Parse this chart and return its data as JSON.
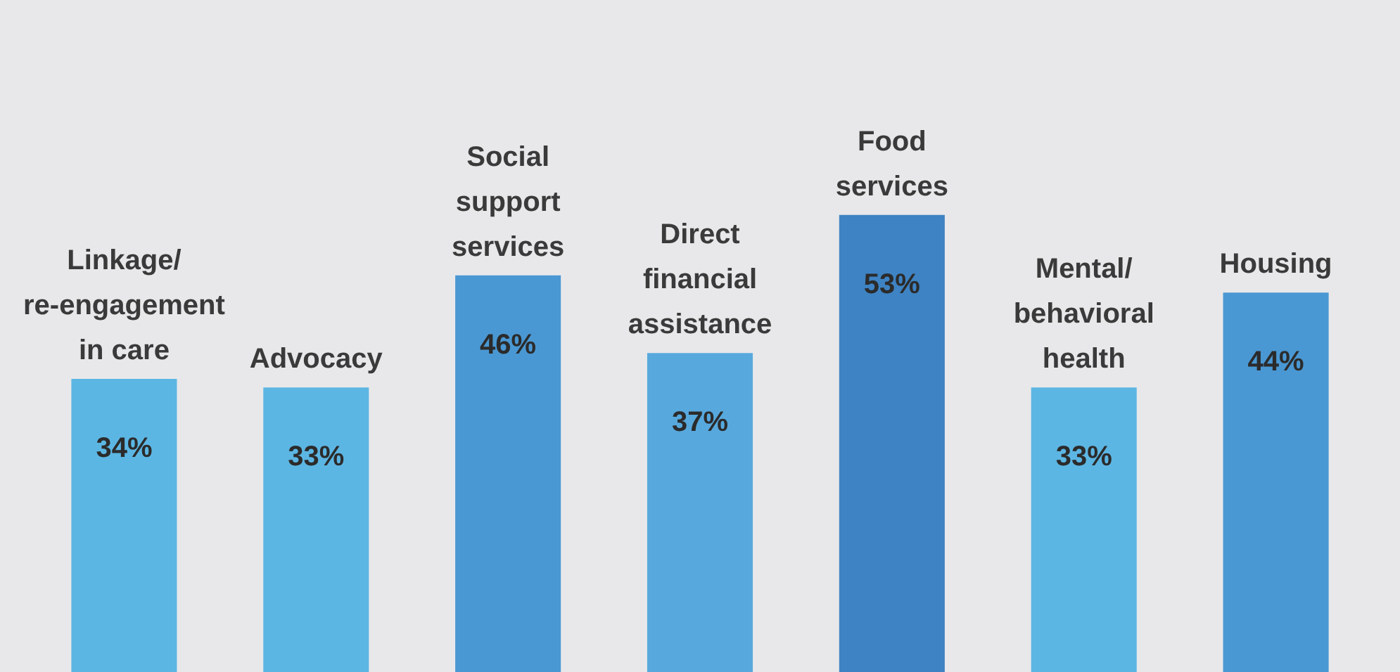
{
  "chart_data": {
    "type": "bar",
    "categories": [
      "Linkage/ re-engagement in care",
      "Advocacy",
      "Social support services",
      "Direct financial assistance",
      "Food services",
      "Mental/ behavioral health",
      "Housing"
    ],
    "values": [
      34,
      33,
      46,
      37,
      53,
      33,
      44
    ],
    "value_labels": [
      "34%",
      "33%",
      "46%",
      "37%",
      "53%",
      "33%",
      "44%"
    ],
    "colors": [
      "#5cb6e3",
      "#5cb6e3",
      "#4a98d3",
      "#57a9dd",
      "#3e83c3",
      "#5cb6e3",
      "#4a98d3"
    ]
  }
}
